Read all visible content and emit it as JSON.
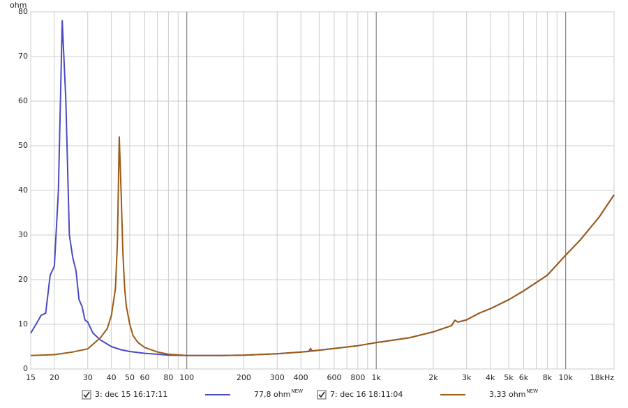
{
  "chart_data": {
    "type": "line",
    "ylabel": "ohm",
    "xscale": "log",
    "grid": true,
    "xlim": [
      15,
      18000
    ],
    "ylim": [
      0,
      80
    ],
    "yticks": [
      0,
      10,
      20,
      30,
      40,
      50,
      60,
      70,
      80
    ],
    "xticks": [
      15,
      20,
      30,
      40,
      50,
      60,
      80,
      100,
      200,
      300,
      400,
      600,
      800,
      {
        "value": 1000,
        "label": "1k"
      },
      {
        "value": 2000,
        "label": "2k"
      },
      {
        "value": 3000,
        "label": "3k"
      },
      {
        "value": 4000,
        "label": "4k"
      },
      {
        "value": 5000,
        "label": "5k"
      },
      {
        "value": 6000,
        "label": "6k"
      },
      {
        "value": 8000,
        "label": "8k"
      },
      {
        "value": 10000,
        "label": "10k"
      },
      {
        "value": 18000,
        "label": "18kHz"
      }
    ],
    "xgrid_minor": [
      70,
      90,
      500,
      700,
      900,
      7000,
      9000
    ],
    "xgrid_major": [
      100,
      1000,
      10000
    ],
    "series": [
      {
        "name": "3: dec 15 16:17:11",
        "color": "#4b4bc0",
        "readout": "77,8 ohm",
        "readout_tag": "NEW",
        "x": [
          15,
          16,
          17,
          18,
          19,
          20,
          21,
          22,
          23,
          24,
          25,
          26,
          27,
          28,
          29,
          30,
          32,
          35,
          40,
          45,
          50,
          60,
          70,
          80,
          100,
          150,
          200,
          300,
          400,
          500,
          600,
          800,
          1000,
          1500,
          2000,
          2500,
          2600,
          2700,
          3000,
          3500,
          4000,
          5000,
          6000,
          8000,
          10000,
          12000,
          15000,
          18000
        ],
        "values": [
          8,
          10,
          12,
          12.5,
          21,
          23,
          40,
          78,
          60,
          30,
          25,
          22,
          15.5,
          14,
          11,
          10.5,
          8,
          6.5,
          5,
          4.3,
          3.9,
          3.5,
          3.3,
          3.1,
          3.0,
          3.0,
          3.1,
          3.4,
          3.8,
          4.2,
          4.6,
          5.2,
          5.9,
          7.0,
          8.3,
          9.7,
          10.9,
          10.5,
          11,
          12.5,
          13.5,
          15.5,
          17.5,
          21,
          25.5,
          29,
          34,
          39
        ]
      },
      {
        "name": "7: dec 16 18:11:04",
        "color": "#9c5a14",
        "readout": "3,33 ohm",
        "readout_tag": "NEW",
        "x": [
          15,
          20,
          25,
          30,
          35,
          38,
          40,
          42,
          43,
          44,
          45,
          46,
          47,
          48,
          50,
          52,
          55,
          60,
          70,
          80,
          100,
          150,
          200,
          300,
          400,
          440,
          450,
          460,
          500,
          600,
          800,
          1000,
          1500,
          2000,
          2500,
          2600,
          2700,
          3000,
          3500,
          4000,
          5000,
          6000,
          8000,
          10000,
          12000,
          15000,
          18000
        ],
        "values": [
          3,
          3.2,
          3.8,
          4.5,
          7,
          9,
          12,
          18,
          28,
          52,
          40,
          26,
          18,
          14,
          10,
          7.5,
          6,
          4.8,
          3.8,
          3.3,
          3.0,
          3.0,
          3.1,
          3.4,
          3.8,
          3.9,
          4.6,
          4.0,
          4.2,
          4.6,
          5.2,
          5.9,
          7.0,
          8.3,
          9.7,
          10.9,
          10.5,
          11,
          12.5,
          13.5,
          15.5,
          17.5,
          21,
          25.5,
          29,
          34,
          39
        ]
      }
    ]
  }
}
